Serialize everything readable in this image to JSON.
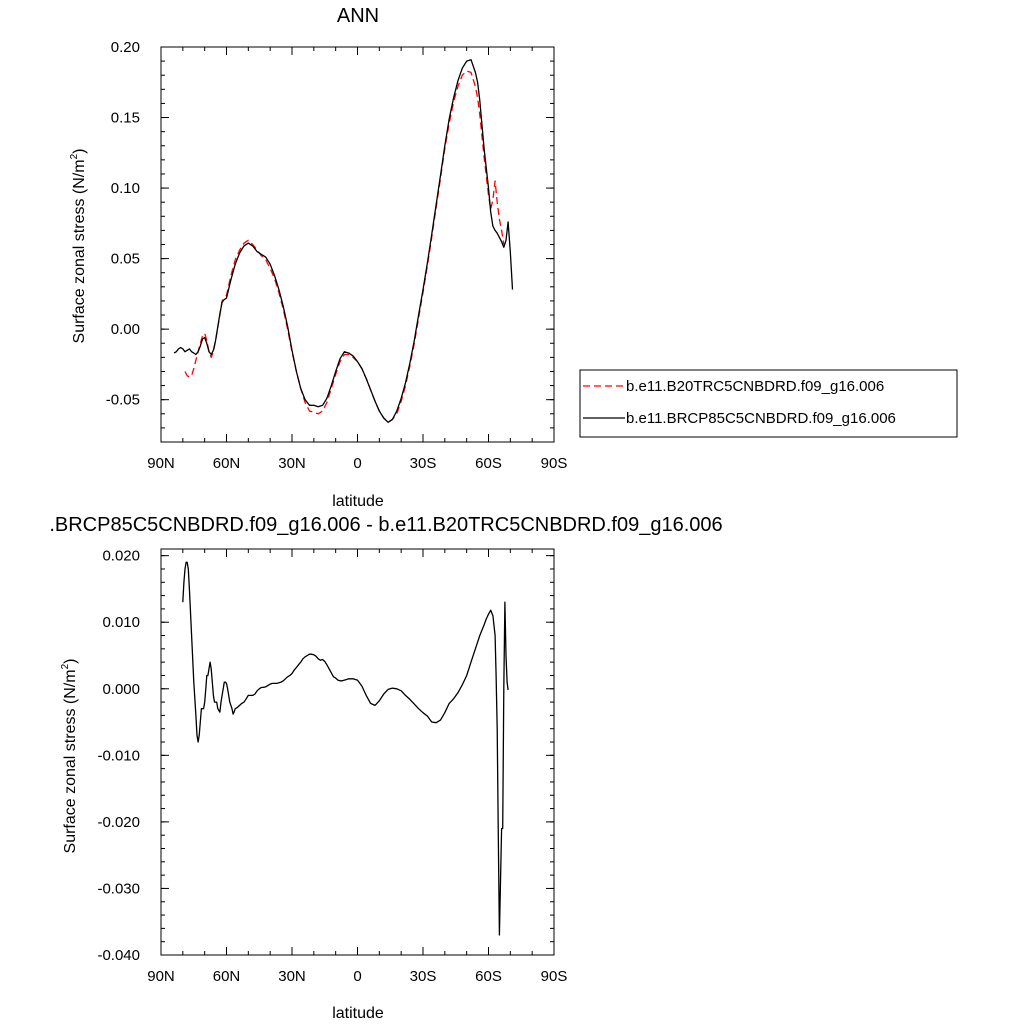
{
  "chart_data": [
    {
      "type": "line",
      "title": "ANN",
      "xlabel": "latitude",
      "ylabel": "Surface zonal stress (N/m",
      "ylabel_sup": "2",
      "ylabel_close": ")",
      "xlim": [
        90,
        -90
      ],
      "ylim": [
        -0.08,
        0.2
      ],
      "x_ticks": [
        90,
        60,
        30,
        0,
        -30,
        -60,
        -90
      ],
      "x_tick_labels": [
        "90N",
        "60N",
        "30N",
        "0",
        "30S",
        "60S",
        "90S"
      ],
      "y_ticks": [
        -0.05,
        0.0,
        0.05,
        0.1,
        0.15,
        0.2
      ],
      "y_tick_labels": [
        "-0.05",
        "0.00",
        "0.05",
        "0.10",
        "0.15",
        "0.20"
      ],
      "grid": false,
      "legend_position": "right",
      "series": [
        {
          "name": "b.e11.B20TRC5CNBDRD.f09_g16.006",
          "color": "#ff0000",
          "dash": true,
          "x": [
            79,
            78,
            77,
            76,
            75,
            74,
            73,
            72,
            71,
            70,
            69,
            68,
            67,
            66,
            65,
            63,
            62,
            61,
            60,
            58,
            56,
            54,
            52,
            50,
            48,
            46,
            44,
            42,
            40,
            38,
            36,
            34,
            32,
            30,
            28,
            26,
            24,
            22,
            20,
            18,
            16,
            14,
            12,
            10,
            8,
            6,
            4,
            2,
            0,
            -2,
            -4,
            -6,
            -8,
            -10,
            -12,
            -14,
            -16,
            -18,
            -20,
            -22,
            -24,
            -26,
            -28,
            -30,
            -32,
            -34,
            -36,
            -38,
            -40,
            -42,
            -44,
            -46,
            -48,
            -50,
            -52,
            -54,
            -55,
            -56,
            -58,
            -60,
            -61,
            -62,
            -63,
            -64,
            -65,
            -66,
            -67
          ],
          "y": [
            -0.03,
            -0.033,
            -0.034,
            -0.033,
            -0.028,
            -0.022,
            -0.016,
            -0.01,
            -0.005,
            -0.003,
            -0.008,
            -0.016,
            -0.02,
            -0.016,
            -0.008,
            0.01,
            0.02,
            0.022,
            0.024,
            0.038,
            0.049,
            0.056,
            0.061,
            0.063,
            0.06,
            0.056,
            0.052,
            0.049,
            0.043,
            0.036,
            0.026,
            0.014,
            0.0,
            -0.016,
            -0.03,
            -0.042,
            -0.052,
            -0.058,
            -0.059,
            -0.06,
            -0.058,
            -0.052,
            -0.042,
            -0.032,
            -0.023,
            -0.018,
            -0.018,
            -0.02,
            -0.023,
            -0.028,
            -0.035,
            -0.043,
            -0.051,
            -0.058,
            -0.063,
            -0.066,
            -0.064,
            -0.06,
            -0.051,
            -0.04,
            -0.026,
            -0.01,
            0.008,
            0.026,
            0.045,
            0.065,
            0.086,
            0.107,
            0.128,
            0.146,
            0.161,
            0.172,
            0.18,
            0.183,
            0.182,
            0.172,
            0.164,
            0.152,
            0.122,
            0.095,
            0.085,
            0.092,
            0.105,
            0.09,
            0.078,
            0.07,
            0.06
          ]
        },
        {
          "name": "b.e11.BRCP85C5CNBDRD.f09_g16.006",
          "color": "#000000",
          "dash": false,
          "x": [
            84,
            83,
            82,
            81,
            80,
            79,
            78,
            77,
            76,
            75,
            74,
            73,
            72,
            71,
            70,
            69,
            68,
            67,
            66,
            65,
            63,
            62,
            61,
            60,
            58,
            56,
            54,
            52,
            50,
            48,
            46,
            44,
            42,
            40,
            38,
            36,
            34,
            32,
            30,
            28,
            26,
            24,
            22,
            20,
            18,
            16,
            14,
            12,
            10,
            8,
            6,
            4,
            2,
            0,
            -2,
            -4,
            -6,
            -8,
            -10,
            -12,
            -14,
            -16,
            -18,
            -20,
            -22,
            -24,
            -26,
            -28,
            -30,
            -32,
            -34,
            -36,
            -38,
            -40,
            -42,
            -44,
            -46,
            -48,
            -50,
            -52,
            -54,
            -55,
            -56,
            -58,
            -60,
            -61,
            -62,
            -63,
            -64,
            -65,
            -66,
            -67,
            -68,
            -69,
            -70,
            -71
          ],
          "y": [
            -0.017,
            -0.016,
            -0.014,
            -0.013,
            -0.014,
            -0.016,
            -0.015,
            -0.014,
            -0.016,
            -0.017,
            -0.018,
            -0.016,
            -0.012,
            -0.007,
            -0.006,
            -0.01,
            -0.016,
            -0.018,
            -0.015,
            -0.008,
            0.011,
            0.019,
            0.021,
            0.022,
            0.035,
            0.046,
            0.054,
            0.059,
            0.061,
            0.059,
            0.055,
            0.053,
            0.051,
            0.046,
            0.038,
            0.028,
            0.016,
            0.002,
            -0.015,
            -0.03,
            -0.042,
            -0.05,
            -0.054,
            -0.054,
            -0.055,
            -0.054,
            -0.049,
            -0.04,
            -0.03,
            -0.021,
            -0.016,
            -0.017,
            -0.019,
            -0.023,
            -0.028,
            -0.035,
            -0.043,
            -0.051,
            -0.058,
            -0.063,
            -0.066,
            -0.064,
            -0.058,
            -0.049,
            -0.038,
            -0.024,
            -0.008,
            0.01,
            0.028,
            0.047,
            0.067,
            0.088,
            0.109,
            0.13,
            0.149,
            0.164,
            0.176,
            0.185,
            0.19,
            0.191,
            0.182,
            0.175,
            0.162,
            0.128,
            0.1,
            0.083,
            0.073,
            0.07,
            0.068,
            0.065,
            0.062,
            0.058,
            0.063,
            0.076,
            0.055,
            0.028
          ]
        }
      ]
    },
    {
      "type": "line",
      "title": ".BRCP85C5CNBDRD.f09_g16.006 - b.e11.B20TRC5CNBDRD.f09_g16.006",
      "xlabel": "latitude",
      "ylabel": "Surface zonal stress (N/m",
      "ylabel_sup": "2",
      "ylabel_close": ")",
      "xlim": [
        90,
        -90
      ],
      "ylim": [
        -0.04,
        0.021
      ],
      "x_ticks": [
        90,
        60,
        30,
        0,
        -30,
        -60,
        -90
      ],
      "x_tick_labels": [
        "90N",
        "60N",
        "30N",
        "0",
        "30S",
        "60S",
        "90S"
      ],
      "y_ticks": [
        -0.04,
        -0.03,
        -0.02,
        -0.01,
        0.0,
        0.01,
        0.02
      ],
      "y_tick_labels": [
        "-0.040",
        "-0.030",
        "-0.020",
        "-0.010",
        "0.000",
        "0.010",
        "0.020"
      ],
      "grid": false,
      "series": [
        {
          "color": "#000000",
          "dash": false,
          "x": [
            80,
            79.5,
            79,
            78.5,
            78,
            77.5,
            77,
            76,
            75,
            74,
            73.5,
            73,
            72.5,
            72,
            71.5,
            71,
            70.5,
            70,
            69.5,
            69,
            68.5,
            68,
            67.5,
            67,
            66.5,
            66,
            65.5,
            65,
            64.5,
            64,
            63,
            62.5,
            62,
            61.5,
            61,
            60.5,
            60,
            59.5,
            59,
            58.5,
            58,
            57.5,
            57,
            56.5,
            56,
            55,
            54,
            53,
            52,
            51,
            50,
            49,
            48,
            47,
            46,
            45,
            44,
            43,
            42,
            41,
            40,
            39,
            38,
            37,
            36,
            35,
            34,
            33,
            32,
            31,
            30,
            29,
            28,
            27,
            26,
            25,
            24,
            23,
            22,
            21,
            20,
            19,
            18,
            17,
            16,
            15,
            14,
            13,
            12,
            11,
            10,
            9,
            8,
            7,
            6,
            5,
            4,
            3,
            2,
            1,
            0,
            -2,
            -4,
            -6,
            -8,
            -10,
            -12,
            -14,
            -16,
            -18,
            -20,
            -22,
            -24,
            -26,
            -28,
            -30,
            -32,
            -34,
            -36,
            -38,
            -40,
            -42,
            -44,
            -46,
            -48,
            -50,
            -52,
            -54,
            -56,
            -58,
            -59,
            -60,
            -61,
            -62,
            -63,
            -63.5,
            -64,
            -64.5,
            -65,
            -65.5,
            -66,
            -66.5,
            -67,
            -67.5,
            -68,
            -68.5,
            -69
          ],
          "y": [
            0.013,
            0.016,
            0.018,
            0.019,
            0.019,
            0.018,
            0.015,
            0.008,
            0.001,
            -0.004,
            -0.007,
            -0.008,
            -0.007,
            -0.005,
            -0.003,
            -0.003,
            -0.003,
            -0.002,
            0.0,
            0.002,
            0.002,
            0.003,
            0.004,
            0.003,
            0.001,
            -0.001,
            -0.002,
            -0.002,
            -0.002,
            -0.003,
            -0.0035,
            -0.002,
            -0.001,
            0.0,
            0.001,
            0.001,
            0.0008,
            0.0,
            -0.001,
            -0.002,
            -0.0025,
            -0.003,
            -0.0038,
            -0.0035,
            -0.003,
            -0.0028,
            -0.0025,
            -0.0022,
            -0.002,
            -0.0015,
            -0.001,
            -0.001,
            -0.001,
            -0.0008,
            -0.0003,
            0.0,
            0.0002,
            0.0002,
            0.0003,
            0.0005,
            0.0007,
            0.0008,
            0.0008,
            0.0008,
            0.0009,
            0.001,
            0.0012,
            0.0015,
            0.0018,
            0.002,
            0.0023,
            0.0028,
            0.0032,
            0.0036,
            0.004,
            0.0045,
            0.0048,
            0.005,
            0.0052,
            0.0052,
            0.0051,
            0.0049,
            0.0045,
            0.0043,
            0.0044,
            0.0041,
            0.0036,
            0.003,
            0.0024,
            0.0018,
            0.0016,
            0.0013,
            0.0012,
            0.0012,
            0.0013,
            0.0014,
            0.0015,
            0.0015,
            0.0015,
            0.0014,
            0.0013,
            0.0004,
            -0.001,
            -0.0022,
            -0.0025,
            -0.0018,
            -0.0008,
            -0.0001,
            0.0001,
            0.0,
            -0.0003,
            -0.001,
            -0.0016,
            -0.0023,
            -0.003,
            -0.0036,
            -0.0041,
            -0.005,
            -0.0051,
            -0.0047,
            -0.0036,
            -0.0022,
            -0.0015,
            -0.0006,
            0.0006,
            0.002,
            0.004,
            0.006,
            0.008,
            0.0096,
            0.0105,
            0.0112,
            0.0118,
            0.011,
            0.008,
            0.002,
            -0.006,
            -0.022,
            -0.037,
            -0.029,
            -0.021,
            -0.021,
            0.0,
            0.013,
            0.005,
            0.001,
            -0.0002
          ]
        }
      ]
    }
  ]
}
